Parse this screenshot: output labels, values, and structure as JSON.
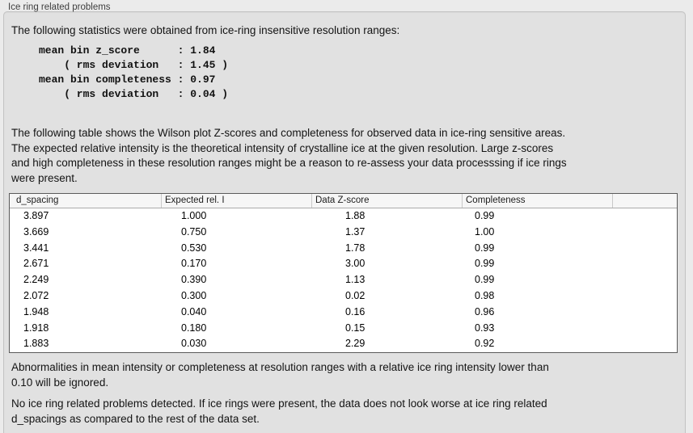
{
  "panel": {
    "title": "Ice ring related problems"
  },
  "intro": "The following statistics were obtained from ice-ring insensitive resolution ranges:",
  "stats_block": "mean bin z_score      : 1.84\n    ( rms deviation   : 1.45 )\nmean bin completeness : 0.97\n    ( rms deviation   : 0.04 )",
  "stats": {
    "mean_bin_z_score": "1.84",
    "z_score_rms_deviation": "1.45",
    "mean_bin_completeness": "0.97",
    "completeness_rms_deviation": "0.04"
  },
  "description": "The following table shows the Wilson plot Z-scores and completeness for observed data in ice-ring sensitive areas.\nThe expected relative intensity is the theoretical intensity of crystalline ice at the given resolution. Large z-scores\nand high completeness in these resolution ranges might be a reason to re-assess your data processsing if ice rings\nwere present.",
  "table": {
    "columns": [
      "d_spacing",
      "Expected rel. I",
      "Data Z-score",
      "Completeness"
    ],
    "rows": [
      [
        "3.897",
        "1.000",
        "1.88",
        "0.99"
      ],
      [
        "3.669",
        "0.750",
        "1.37",
        "1.00"
      ],
      [
        "3.441",
        "0.530",
        "1.78",
        "0.99"
      ],
      [
        "2.671",
        "0.170",
        "3.00",
        "0.99"
      ],
      [
        "2.249",
        "0.390",
        "1.13",
        "0.99"
      ],
      [
        "2.072",
        "0.300",
        "0.02",
        "0.98"
      ],
      [
        "1.948",
        "0.040",
        "0.16",
        "0.96"
      ],
      [
        "1.918",
        "0.180",
        "0.15",
        "0.93"
      ],
      [
        "1.883",
        "0.030",
        "2.29",
        "0.92"
      ]
    ]
  },
  "note1": "Abnormalities in mean intensity or completeness at resolution ranges with a relative ice ring intensity lower than\n0.10 will be ignored.",
  "note2": "No ice ring related problems detected. If ice rings were present, the data does not look worse at ice ring related\nd_spacings as compared to the rest of the data set.",
  "colors": {
    "page_background": "#ebebeb",
    "groupbox_background": "#e1e1e1",
    "table_border": "#5a5a5a"
  }
}
